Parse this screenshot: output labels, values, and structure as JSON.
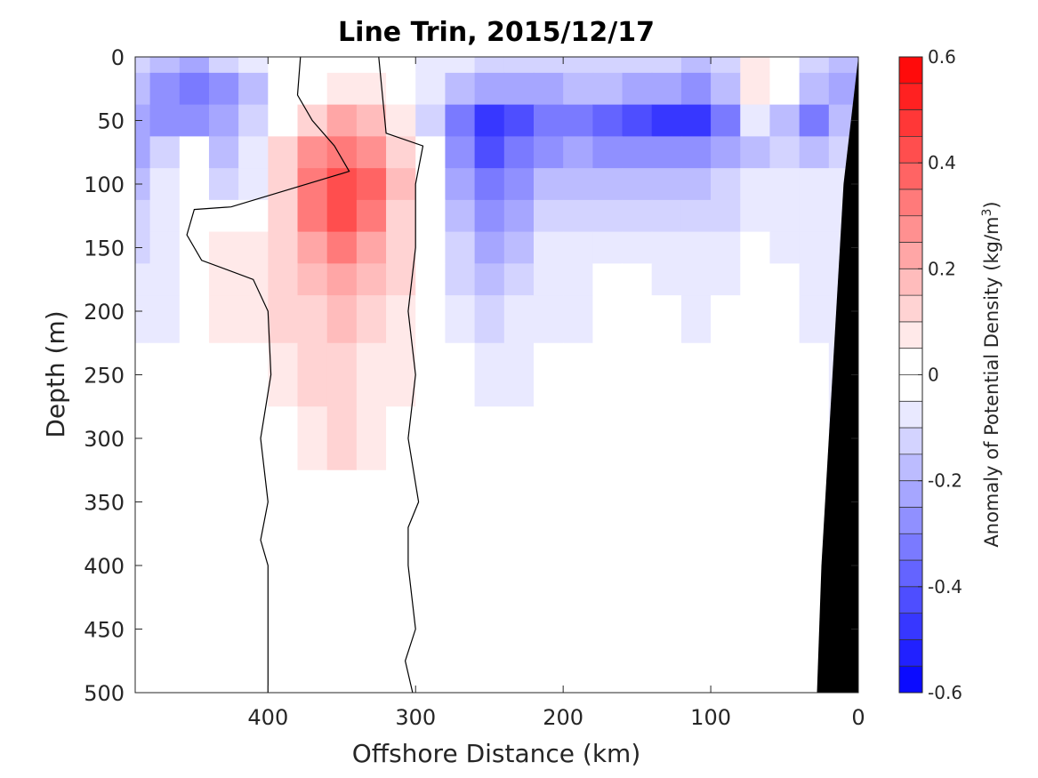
{
  "chart_data": {
    "type": "heatmap",
    "subtype": "filled-contour",
    "title": "Line Trin, 2015/12/17",
    "xlabel": "Offshore Distance (km)",
    "ylabel": "Depth (m)",
    "xlim": [
      490,
      0
    ],
    "ylim": [
      500,
      0
    ],
    "x_reversed": true,
    "y_reversed": true,
    "xticks": [
      400,
      300,
      200,
      100,
      0
    ],
    "yticks": [
      0,
      50,
      100,
      150,
      200,
      250,
      300,
      350,
      400,
      450,
      500
    ],
    "xtick_labels": [
      "400",
      "300",
      "200",
      "100",
      "0"
    ],
    "ytick_labels": [
      "0",
      "50",
      "100",
      "150",
      "200",
      "250",
      "300",
      "350",
      "400",
      "450",
      "500"
    ],
    "colorbar": {
      "label_main": "Anomaly of Potential Density (kg/m",
      "label_sup": "3",
      "label_end": ")",
      "range": [
        -0.6,
        0.6
      ],
      "step": 0.05,
      "ticks": [
        -0.6,
        -0.4,
        -0.2,
        0,
        0.2,
        0.4,
        0.6
      ],
      "tick_labels": [
        "-0.6",
        "-0.4",
        "-0.2",
        "0",
        "0.2",
        "0.4",
        "0.6"
      ],
      "colormap": "blue-white-red"
    },
    "grid_x": [
      490,
      470,
      450,
      430,
      410,
      390,
      370,
      350,
      330,
      310,
      290,
      270,
      250,
      230,
      210,
      190,
      170,
      150,
      130,
      110,
      90,
      70,
      50,
      30,
      10
    ],
    "grid_y": [
      0,
      25,
      50,
      75,
      100,
      125,
      150,
      175,
      200,
      250,
      300,
      350,
      400,
      450,
      500
    ],
    "values": [
      [
        -0.15,
        -0.2,
        -0.25,
        -0.15,
        -0.1,
        0,
        0,
        0,
        0,
        -0.05,
        -0.1,
        -0.1,
        -0.15,
        -0.15,
        -0.15,
        -0.15,
        -0.15,
        -0.15,
        -0.15,
        -0.2,
        -0.15,
        0.05,
        -0.05,
        -0.15,
        -0.2
      ],
      [
        -0.2,
        -0.3,
        -0.35,
        -0.3,
        -0.2,
        -0.05,
        0,
        0.05,
        0.05,
        0,
        -0.1,
        -0.2,
        -0.25,
        -0.25,
        -0.25,
        -0.2,
        -0.2,
        -0.25,
        -0.25,
        -0.3,
        -0.2,
        0.05,
        0,
        -0.2,
        -0.25
      ],
      [
        -0.25,
        -0.3,
        -0.3,
        -0.25,
        -0.15,
        -0.05,
        0.1,
        0.2,
        0.15,
        0.05,
        -0.15,
        -0.35,
        -0.5,
        -0.45,
        -0.35,
        -0.35,
        -0.4,
        -0.45,
        -0.5,
        -0.5,
        -0.35,
        -0.1,
        -0.2,
        -0.35,
        -0.2
      ],
      [
        -0.25,
        -0.15,
        0,
        -0.2,
        -0.1,
        0.1,
        0.25,
        0.3,
        0.25,
        0.1,
        -0.05,
        -0.3,
        -0.45,
        -0.35,
        -0.3,
        -0.25,
        -0.3,
        -0.3,
        -0.3,
        -0.3,
        -0.25,
        -0.2,
        -0.15,
        -0.2,
        -0.15
      ],
      [
        -0.2,
        -0.1,
        0,
        -0.15,
        -0.1,
        0.1,
        0.3,
        0.4,
        0.35,
        0.15,
        0,
        -0.25,
        -0.35,
        -0.3,
        -0.2,
        -0.2,
        -0.2,
        -0.2,
        -0.2,
        -0.2,
        -0.15,
        -0.1,
        -0.1,
        -0.1,
        -0.1
      ],
      [
        -0.15,
        -0.1,
        -0.05,
        0,
        0,
        0.1,
        0.3,
        0.4,
        0.3,
        0.1,
        0,
        -0.2,
        -0.3,
        -0.25,
        -0.15,
        -0.15,
        -0.15,
        -0.15,
        -0.15,
        -0.15,
        -0.15,
        -0.1,
        -0.1,
        -0.1,
        -0.1
      ],
      [
        -0.15,
        -0.1,
        -0.05,
        0.05,
        0.05,
        0.1,
        0.2,
        0.3,
        0.2,
        0.1,
        0,
        -0.15,
        -0.25,
        -0.2,
        -0.1,
        -0.1,
        -0.1,
        -0.1,
        -0.1,
        -0.1,
        -0.1,
        0,
        -0.1,
        -0.1,
        -0.1
      ],
      [
        -0.1,
        -0.1,
        -0.05,
        0.05,
        0.05,
        0.1,
        0.15,
        0.2,
        0.15,
        0.1,
        0,
        -0.15,
        -0.2,
        -0.15,
        -0.1,
        -0.1,
        -0.05,
        -0.05,
        -0.1,
        -0.1,
        -0.1,
        0,
        -0.05,
        -0.1,
        -0.1
      ],
      [
        -0.1,
        -0.1,
        -0.05,
        0.05,
        0.05,
        0.1,
        0.1,
        0.15,
        0.1,
        0.05,
        0,
        -0.1,
        -0.15,
        -0.1,
        -0.1,
        -0.1,
        -0.05,
        0,
        -0.05,
        -0.1,
        -0.05,
        -0.05,
        -0.05,
        -0.1,
        -0.1
      ],
      [
        -0.05,
        -0.05,
        -0.05,
        0,
        0,
        0.05,
        0.1,
        0.1,
        0.05,
        0.05,
        0,
        -0.05,
        -0.1,
        -0.1,
        -0.05,
        -0.05,
        -0.05,
        0,
        0,
        -0.05,
        -0.05,
        -0.05,
        -0.05,
        -0.05,
        -0.1
      ],
      [
        0,
        0,
        0,
        0,
        0,
        0,
        0.05,
        0.1,
        0.05,
        0,
        0,
        0,
        -0.05,
        -0.05,
        -0.05,
        -0.05,
        -0.05,
        0,
        0,
        -0.05,
        -0.05,
        -0.05,
        -0.05,
        -0.05,
        -0.1
      ],
      [
        0,
        0,
        0,
        0,
        0,
        0,
        0,
        0,
        0,
        0,
        0,
        0,
        -0.05,
        -0.05,
        -0.05,
        -0.05,
        -0.05,
        0,
        0,
        -0.05,
        -0.05,
        -0.05,
        -0.05,
        -0.05,
        -0.1
      ],
      [
        0,
        0,
        0,
        0,
        0,
        0,
        0,
        0,
        0,
        0,
        0,
        0,
        -0.05,
        -0.05,
        -0.05,
        -0.05,
        -0.05,
        0,
        0,
        -0.05,
        -0.05,
        -0.05,
        -0.05,
        -0.05,
        -0.1
      ],
      [
        0,
        0,
        0,
        0,
        0,
        0,
        0,
        0,
        0,
        0,
        0,
        0,
        -0.05,
        -0.05,
        -0.05,
        -0.05,
        -0.05,
        0,
        0,
        -0.05,
        -0.05,
        -0.05,
        -0.05,
        -0.05,
        -0.1
      ],
      [
        0,
        0,
        0,
        0,
        0,
        0,
        0,
        0,
        0,
        0,
        0,
        0,
        -0.05,
        -0.05,
        -0.05,
        -0.05,
        -0.05,
        0,
        0,
        -0.05,
        -0.05,
        -0.05,
        -0.05,
        -0.05,
        -0.1
      ]
    ],
    "zero_contours": [
      {
        "name": "western-zero-contour",
        "points": [
          [
            378,
            0
          ],
          [
            380,
            30
          ],
          [
            370,
            50
          ],
          [
            355,
            70
          ],
          [
            345,
            90
          ],
          [
            425,
            118
          ],
          [
            450,
            120
          ],
          [
            455,
            140
          ],
          [
            445,
            160
          ],
          [
            410,
            175
          ],
          [
            400,
            200
          ],
          [
            398,
            250
          ],
          [
            405,
            300
          ],
          [
            400,
            350
          ],
          [
            405,
            380
          ],
          [
            400,
            400
          ],
          [
            400,
            450
          ],
          [
            400,
            500
          ]
        ]
      },
      {
        "name": "eastern-zero-contour",
        "points": [
          [
            325,
            0
          ],
          [
            320,
            60
          ],
          [
            295,
            70
          ],
          [
            300,
            100
          ],
          [
            300,
            150
          ],
          [
            305,
            200
          ],
          [
            300,
            250
          ],
          [
            305,
            300
          ],
          [
            298,
            350
          ],
          [
            305,
            370
          ],
          [
            305,
            400
          ],
          [
            300,
            450
          ],
          [
            307,
            475
          ],
          [
            302,
            500
          ]
        ]
      }
    ],
    "seafloor_polygon": [
      [
        0,
        0
      ],
      [
        5,
        50
      ],
      [
        10,
        100
      ],
      [
        15,
        200
      ],
      [
        20,
        300
      ],
      [
        25,
        400
      ],
      [
        28,
        500
      ],
      [
        0,
        500
      ]
    ]
  }
}
